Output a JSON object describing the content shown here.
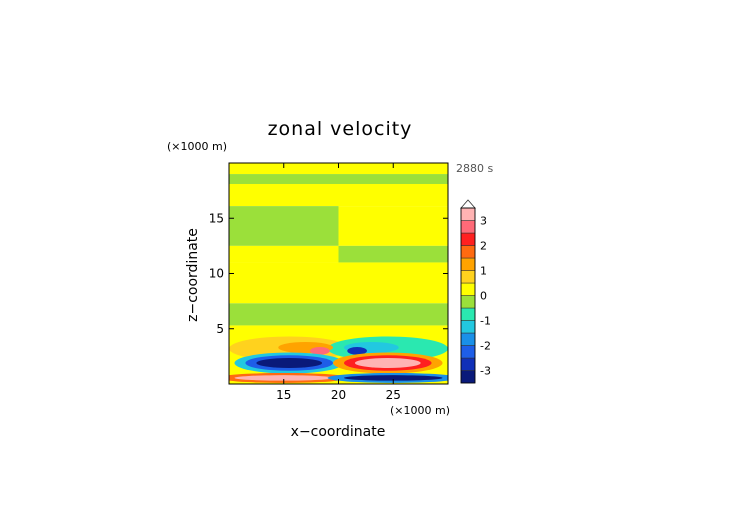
{
  "chart_data": {
    "type": "heatmap",
    "title": "zonal velocity",
    "xlabel": "x−coordinate",
    "ylabel": "z−coordinate",
    "x_unit": "(×1000 m)",
    "y_unit": "(×1000 m)",
    "time_label": "2880 s",
    "xlim": [
      10,
      30
    ],
    "ylim": [
      0,
      20
    ],
    "x_ticks": [
      15,
      20,
      25
    ],
    "y_ticks": [
      5,
      10,
      15
    ],
    "colorbar": {
      "levels": [
        -3.5,
        -3,
        -2.5,
        -2,
        -1.5,
        -1,
        -0.5,
        0,
        0.5,
        1,
        1.5,
        2,
        2.5,
        3,
        3.5
      ],
      "tick_labels": [
        "-3",
        "-2",
        "-1",
        "0",
        "1",
        "2",
        "3"
      ],
      "tick_values": [
        -3,
        -2,
        -1,
        0,
        1,
        2,
        3
      ],
      "colors": [
        "#0a1a7a",
        "#1030b8",
        "#1e5ee8",
        "#1a90e8",
        "#22c8e0",
        "#2ae8b0",
        "#9be03a",
        "#ffff00",
        "#ffd21e",
        "#ffa300",
        "#ff6a10",
        "#ff2020",
        "#ff6a78",
        "#ffb3b3"
      ],
      "extend": "max"
    },
    "bands": [
      {
        "z": [
          19.0,
          20.0
        ],
        "left_value": 0.25,
        "right_value": 0.25
      },
      {
        "z": [
          18.1,
          19.0
        ],
        "left_value": -0.2,
        "right_value": -0.2
      },
      {
        "z": [
          16.1,
          18.1
        ],
        "left_value": 0.25,
        "right_value": 0.25
      },
      {
        "z": [
          12.5,
          16.1
        ],
        "left_value": -0.2,
        "right_value": 0.25
      },
      {
        "z": [
          11.0,
          12.5
        ],
        "left_value": 0.25,
        "right_value": -0.2
      },
      {
        "z": [
          7.3,
          11.0
        ],
        "left_value": 0.25,
        "right_value": 0.25
      },
      {
        "z": [
          5.3,
          7.3
        ],
        "left_value": -0.2,
        "right_value": -0.2
      },
      {
        "z": [
          0.0,
          5.3
        ],
        "left_value": 0.25,
        "right_value": 0.25
      }
    ],
    "features": [
      {
        "shape": "ellipse",
        "x": 15.5,
        "z": 3.2,
        "rx": 5.5,
        "rz": 1.1,
        "value": 0.75
      },
      {
        "shape": "ellipse",
        "x": 24.5,
        "z": 3.2,
        "rx": 5.5,
        "rz": 1.1,
        "value": -0.75
      },
      {
        "shape": "ellipse",
        "x": 17.0,
        "z": 3.3,
        "rx": 2.5,
        "rz": 0.5,
        "value": 1.25
      },
      {
        "shape": "ellipse",
        "x": 23.0,
        "z": 3.3,
        "rx": 2.5,
        "rz": 0.5,
        "value": -1.25
      },
      {
        "shape": "ellipse",
        "x": 18.3,
        "z": 3.0,
        "rx": 0.9,
        "rz": 0.35,
        "value": 2.75
      },
      {
        "shape": "ellipse",
        "x": 21.7,
        "z": 3.0,
        "rx": 0.9,
        "rz": 0.35,
        "value": -2.75
      },
      {
        "shape": "ellipse",
        "x": 15.5,
        "z": 1.9,
        "rx": 5.0,
        "rz": 0.95,
        "value": -1.25
      },
      {
        "shape": "ellipse",
        "x": 15.5,
        "z": 1.9,
        "rx": 4.0,
        "rz": 0.7,
        "value": -2.25
      },
      {
        "shape": "ellipse",
        "x": 15.5,
        "z": 1.9,
        "rx": 3.0,
        "rz": 0.45,
        "value": -3.25
      },
      {
        "shape": "ellipse",
        "x": 24.5,
        "z": 1.9,
        "rx": 5.0,
        "rz": 0.95,
        "value": 1.25
      },
      {
        "shape": "ellipse",
        "x": 24.5,
        "z": 1.9,
        "rx": 4.0,
        "rz": 0.7,
        "value": 2.25
      },
      {
        "shape": "ellipse",
        "x": 24.5,
        "z": 1.9,
        "rx": 3.0,
        "rz": 0.45,
        "value": 3.25
      },
      {
        "shape": "ellipse",
        "x": 15.0,
        "z": 0.55,
        "rx": 6.0,
        "rz": 0.45,
        "value": 1.75
      },
      {
        "shape": "ellipse",
        "x": 15.0,
        "z": 0.55,
        "rx": 4.5,
        "rz": 0.25,
        "value": 3.25
      },
      {
        "shape": "ellipse",
        "x": 25.0,
        "z": 0.55,
        "rx": 6.0,
        "rz": 0.45,
        "value": -1.75
      },
      {
        "shape": "ellipse",
        "x": 25.0,
        "z": 0.55,
        "rx": 4.5,
        "rz": 0.25,
        "value": -3.25
      }
    ]
  }
}
